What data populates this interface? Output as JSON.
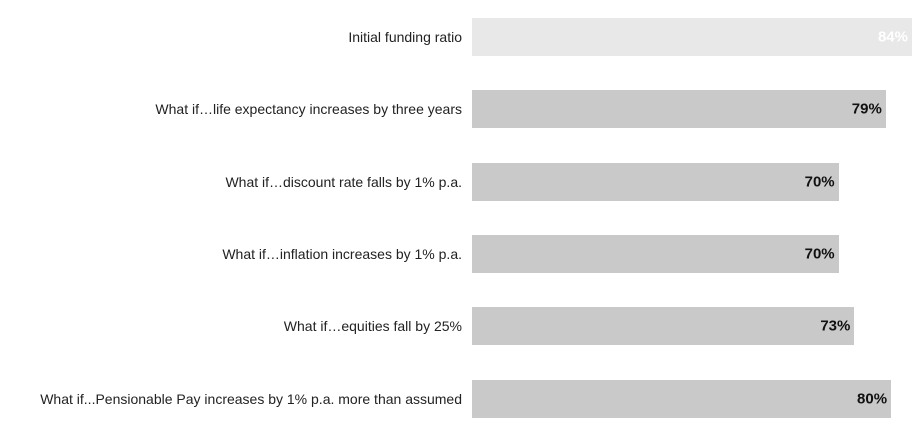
{
  "chart_data": {
    "type": "bar",
    "orientation": "horizontal",
    "categories": [
      "Initial funding ratio",
      "What if…life expectancy increases by three years",
      "What if…discount rate falls by 1% p.a.",
      "What if…inflation increases by 1% p.a.",
      "What if…equities fall by 25%",
      "What if...Pensionable Pay increases by 1% p.a. more than assumed"
    ],
    "values": [
      84,
      79,
      70,
      70,
      73,
      80
    ],
    "value_labels": [
      "84%",
      "79%",
      "70%",
      "70%",
      "73%",
      "80%"
    ],
    "colors": [
      "#e8e8e8",
      "#c9c9c9",
      "#c9c9c9",
      "#c9c9c9",
      "#c9c9c9",
      "#c9c9c9"
    ],
    "label_colors": [
      "#ffffff",
      "#111111",
      "#111111",
      "#111111",
      "#111111",
      "#111111"
    ]
  }
}
